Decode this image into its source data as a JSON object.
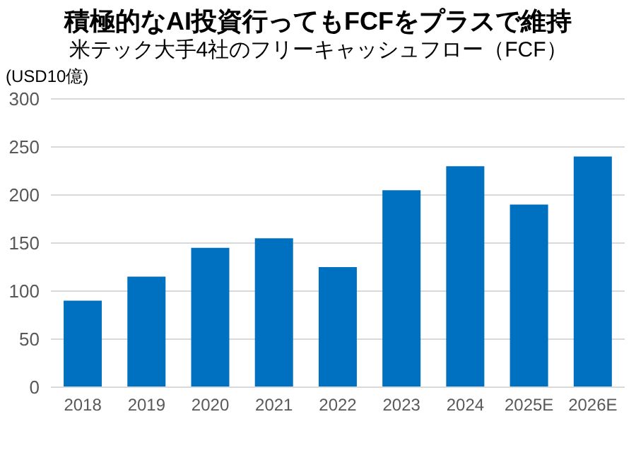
{
  "chart_data": {
    "type": "bar",
    "title": "積極的なAI投資行ってもFCFをプラスで維持",
    "subtitle": "米テック大手4社のフリーキャッシュフロー（FCF）",
    "ylabel": "(USD10億)",
    "categories": [
      "2018",
      "2019",
      "2020",
      "2021",
      "2022",
      "2023",
      "2024",
      "2025E",
      "2026E"
    ],
    "values": [
      90,
      115,
      145,
      155,
      125,
      205,
      230,
      190,
      240
    ],
    "color": "#0070c0",
    "ylim": [
      0,
      300
    ],
    "yticks": [
      0,
      50,
      100,
      150,
      200,
      250,
      300
    ],
    "grid": "y"
  }
}
